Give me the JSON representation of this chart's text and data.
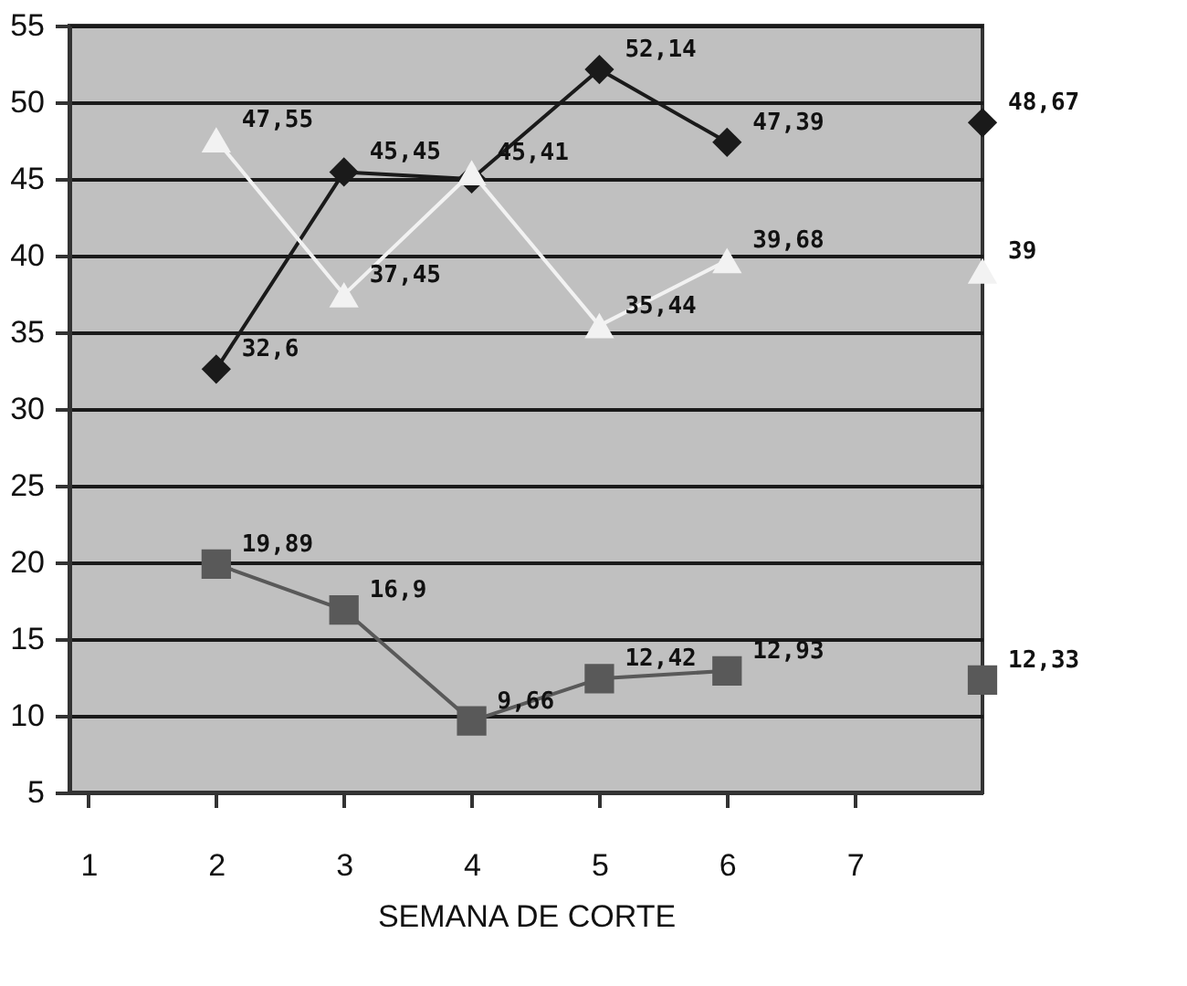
{
  "chart_data": {
    "type": "line",
    "xlabel": "SEMANA DE CORTE",
    "x": [
      2,
      3,
      4,
      5,
      6,
      7,
      8
    ],
    "xlim": [
      0.85,
      8
    ],
    "xticks": [
      1,
      2,
      3,
      4,
      5,
      6,
      7
    ],
    "ylim": [
      5,
      55
    ],
    "yticks": [
      5,
      10,
      15,
      20,
      25,
      30,
      35,
      40,
      45,
      50,
      55
    ],
    "grid": "y",
    "series": [
      {
        "color": "#1a1a1a",
        "marker": "diamond",
        "values": [
          32.6,
          45.45,
          45,
          52.14,
          47.39,
          null,
          48.67
        ],
        "value_labels": [
          "32,6",
          "45,45",
          null,
          "52,14",
          "47,39",
          null,
          "48,67"
        ]
      },
      {
        "color": "#f2f2f2",
        "marker": "triangle",
        "values": [
          47.55,
          37.45,
          45.41,
          35.44,
          39.68,
          null,
          39
        ],
        "value_labels": [
          "47,55",
          "37,45",
          "45,41",
          "35,44",
          "39,68",
          null,
          "39"
        ]
      },
      {
        "color": "#595959",
        "marker": "square",
        "values": [
          19.89,
          16.9,
          9.66,
          12.42,
          12.93,
          null,
          12.33
        ],
        "value_labels": [
          "19,89",
          "16,9",
          "9,66",
          "12,42",
          "12,93",
          null,
          "12,33"
        ]
      }
    ]
  }
}
